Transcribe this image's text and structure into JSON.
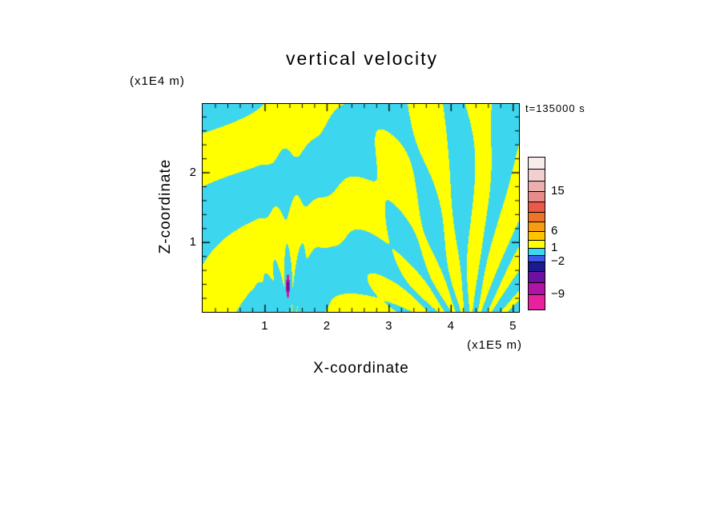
{
  "page": {
    "background": "#FFFFFF"
  },
  "chart_data": {
    "type": "heatmap",
    "title": "vertical velocity",
    "xlabel": "X-coordinate",
    "ylabel": "Z-coordinate",
    "x_unit": "(x1E5 m)",
    "z_unit": "(x1E4 m)",
    "annotation": "t=135000 s",
    "x_range": [
      0,
      5.1
    ],
    "z_range": [
      0,
      2.98
    ],
    "x_ticks": [
      1,
      2,
      3,
      4,
      5
    ],
    "z_ticks": [
      1,
      2
    ],
    "minor_tick_interval": 0.2,
    "description": "Filled contour field of vertical velocity from a gravity-wave simulation: positive values yellow, negative values cyan, with an isolated strong negative (magenta) streak near x=1.4e5 m in the lower part of the domain.",
    "field_colors": {
      "positive": "#FFFF00",
      "negative": "#3CD6EE",
      "spot": "#D8189E",
      "spot_core": "#5E0FA8"
    },
    "colorbar_levels": [
      -9,
      -2,
      1,
      6,
      15
    ],
    "colorbar": {
      "segments": [
        {
          "color": "#F7ECEC",
          "h": 15
        },
        {
          "color": "#F2D0D0",
          "h": 15
        },
        {
          "color": "#ECAFAF",
          "h": 13
        },
        {
          "color": "#E68A8A",
          "h": 13
        },
        {
          "color": "#EA5A46",
          "h": 13
        },
        {
          "color": "#F07428",
          "h": 12
        },
        {
          "color": "#F89C14",
          "h": 12
        },
        {
          "color": "#FFC400",
          "h": 11
        },
        {
          "color": "#FFFF00",
          "h": 10
        },
        {
          "color": "#3CD6EE",
          "h": 9
        },
        {
          "color": "#3A57E8",
          "h": 8
        },
        {
          "color": "#1B1B8E",
          "h": 12
        },
        {
          "color": "#6B10A0",
          "h": 14
        },
        {
          "color": "#B013A6",
          "h": 15
        },
        {
          "color": "#E8219E",
          "h": 18
        }
      ],
      "labels": [
        {
          "text": "15",
          "offset": 43
        },
        {
          "text": "6",
          "offset": 93
        },
        {
          "text": "1",
          "offset": 114
        },
        {
          "text": "−2",
          "offset": 131
        },
        {
          "text": "−9",
          "offset": 172
        }
      ]
    },
    "pattern": {
      "band_kx": 2.2,
      "band_kz": 2.9,
      "band_phase": 1.2,
      "band_mod_amp": 1.1,
      "band_mod_kx": 0.85,
      "band_mod_kz": 1.25,
      "split_x": 2.7,
      "fan_x": 4.3,
      "fan_z": -0.5,
      "fan_n": 24,
      "fan_wobble": 0.45,
      "jet_x": 1.42,
      "jet_z": -0.4,
      "jet_n": 34,
      "jet_sigma": 0.22,
      "bottom_bias": 0.3,
      "spot": {
        "x": 1.375,
        "z": 0.37,
        "rx": 0.03,
        "rz": 0.17
      }
    }
  }
}
